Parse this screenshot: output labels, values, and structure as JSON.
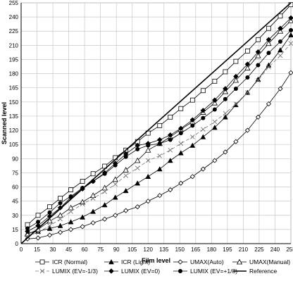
{
  "chart_data": {
    "type": "line",
    "xlabel": "Film level",
    "ylabel": "Scanned level",
    "xlim": [
      0,
      255
    ],
    "ylim": [
      0,
      255
    ],
    "x_ticks": [
      0,
      15,
      30,
      45,
      60,
      75,
      90,
      105,
      120,
      135,
      150,
      165,
      180,
      195,
      210,
      225,
      240,
      255
    ],
    "y_ticks": [
      0,
      15,
      30,
      45,
      60,
      75,
      90,
      105,
      120,
      135,
      150,
      165,
      180,
      195,
      210,
      225,
      240,
      255
    ],
    "x_tick_labels": [
      "0",
      "15",
      "30",
      "45",
      "60",
      "75",
      "90",
      "105",
      "120",
      "135",
      "150",
      "165",
      "180",
      "195",
      "210",
      "225",
      "240",
      "255"
    ],
    "y_tick_labels": [
      "0",
      "15",
      "30",
      "45",
      "60",
      "75",
      "90",
      "105",
      "120",
      "135",
      "150",
      "165",
      "180",
      "195",
      "210",
      "225",
      "240",
      "255"
    ],
    "x": [
      6,
      16,
      27,
      37,
      47,
      58,
      68,
      79,
      89,
      99,
      110,
      120,
      131,
      141,
      151,
      162,
      172,
      183,
      193,
      203,
      214,
      224,
      234,
      245,
      255
    ],
    "grid": true,
    "legend_position": "bottom",
    "series": [
      {
        "name": "ICR (Normal)",
        "color": "#000000",
        "marker": "square-open",
        "dash": "",
        "values": [
          20,
          30,
          39,
          48,
          57,
          66,
          74,
          82,
          91,
          99,
          108,
          117,
          125,
          134,
          143,
          152,
          162,
          172,
          182,
          193,
          204,
          216,
          228,
          241,
          253
        ]
      },
      {
        "name": "ICR (Light)",
        "color": "#000000",
        "marker": "triangle-filled",
        "dash": "",
        "values": [
          11,
          13,
          16,
          19,
          23,
          28,
          34,
          41,
          49,
          56,
          64,
          71,
          79,
          88,
          96,
          104,
          113,
          123,
          134,
          147,
          160,
          174,
          189,
          205,
          221
        ]
      },
      {
        "name": "UMAX(Auto)",
        "color": "#000000",
        "marker": "diamond-open",
        "dash": "",
        "values": [
          5,
          6,
          9,
          12,
          15,
          18,
          22,
          26,
          30,
          35,
          39,
          45,
          51,
          57,
          64,
          71,
          79,
          88,
          97,
          108,
          120,
          134,
          148,
          164,
          181
        ]
      },
      {
        "name": "UMAX(Manual)",
        "color": "#000000",
        "marker": "triangle-open",
        "dash": "",
        "values": [
          10,
          15,
          24,
          30,
          38,
          44,
          51,
          59,
          68,
          78,
          88,
          99,
          106,
          113,
          121,
          129,
          139,
          149,
          161,
          173,
          186,
          199,
          212,
          225,
          236
        ]
      },
      {
        "name": "LUMIX (EV=-1/3)",
        "color": "#777777",
        "marker": "x",
        "dash": "5,3",
        "values": [
          8,
          12,
          19,
          26,
          34,
          42,
          48,
          55,
          63,
          72,
          80,
          88,
          93,
          99,
          106,
          113,
          121,
          129,
          138,
          148,
          160,
          173,
          187,
          199,
          212
        ]
      },
      {
        "name": "LUMIX (EV=0)",
        "color": "#000000",
        "marker": "diamond-filled",
        "dash": "",
        "values": [
          13,
          19,
          29,
          38,
          49,
          58,
          66,
          75,
          85,
          95,
          104,
          106,
          110,
          115,
          122,
          131,
          141,
          152,
          164,
          177,
          190,
          203,
          216,
          228,
          239
        ]
      },
      {
        "name": "LUMIX (EV=+1/3)",
        "color": "#000000",
        "marker": "circle-filled",
        "dash": "",
        "values": [
          16,
          23,
          33,
          43,
          50,
          59,
          66,
          74,
          83,
          92,
          100,
          104,
          106,
          110,
          117,
          125,
          133,
          142,
          153,
          164,
          176,
          189,
          202,
          214,
          226
        ]
      },
      {
        "name": "Reference",
        "color": "#000000",
        "marker": "none",
        "dash": "",
        "width": 1.6,
        "x": [
          0,
          255
        ],
        "values": [
          0,
          255
        ]
      }
    ]
  }
}
